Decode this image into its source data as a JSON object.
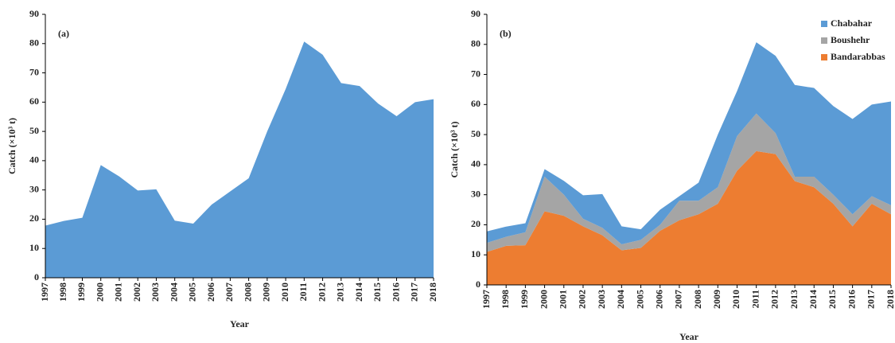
{
  "chart_data": [
    {
      "type": "area",
      "annotation": "(a)",
      "x_label": "Year",
      "y_label": "Catch (×10³ t)",
      "categories": [
        "1997",
        "1998",
        "1999",
        "2000",
        "2001",
        "2002",
        "2003",
        "2004",
        "2005",
        "2006",
        "2007",
        "2008",
        "2009",
        "2010",
        "2011",
        "2012",
        "2013",
        "2014",
        "2015",
        "2016",
        "2017",
        "2018"
      ],
      "values": [
        17.8,
        19.4,
        20.5,
        38.5,
        34.6,
        29.8,
        30.2,
        19.5,
        18.5,
        25,
        29.5,
        34,
        50,
        64.5,
        80.7,
        76.2,
        66.5,
        65.5,
        59.5,
        55.2,
        60,
        61
      ],
      "color": "#5b9bd5",
      "ylim": [
        0,
        90
      ],
      "yticks": [
        0,
        10,
        20,
        30,
        40,
        50,
        60,
        70,
        80,
        90
      ]
    },
    {
      "type": "area",
      "stacked": true,
      "annotation": "(b)",
      "x_label": "Year",
      "y_label": "Catch (×10³ t)",
      "categories": [
        "1997",
        "1998",
        "1999",
        "2000",
        "2001",
        "2002",
        "2003",
        "2004",
        "2005",
        "2006",
        "2007",
        "2008",
        "2009",
        "2010",
        "2011",
        "2012",
        "2013",
        "2014",
        "2015",
        "2016",
        "2017",
        "2018"
      ],
      "series": [
        {
          "name": "Chabahar",
          "color": "#5b9bd5",
          "values": [
            3.8,
            3.4,
            3,
            2.5,
            4.6,
            7.8,
            11.2,
            6,
            3.5,
            5,
            1.5,
            6,
            17.5,
            15,
            23.7,
            25.7,
            30.5,
            29.5,
            29.5,
            31.7,
            30.5,
            34.5
          ]
        },
        {
          "name": "Boushehr",
          "color": "#a5a5a5",
          "values": [
            3,
            3,
            4.3,
            11.5,
            7,
            2.5,
            2.5,
            2,
            2.7,
            2,
            6.5,
            4.5,
            5.5,
            11.5,
            12.5,
            7,
            1.5,
            3.5,
            3,
            4,
            2.5,
            3
          ]
        },
        {
          "name": "Bandarabbas",
          "color": "#ed7d31",
          "values": [
            11,
            13,
            13.2,
            24.5,
            23,
            19.5,
            16.5,
            11.5,
            12.3,
            18,
            21.5,
            23.5,
            27,
            38,
            44.5,
            43.5,
            34.5,
            32.5,
            27,
            19.5,
            27,
            23.5
          ]
        }
      ],
      "legend": "top-right",
      "ylim": [
        0,
        90
      ],
      "yticks": [
        0,
        10,
        20,
        30,
        40,
        50,
        60,
        70,
        80,
        90
      ]
    }
  ]
}
